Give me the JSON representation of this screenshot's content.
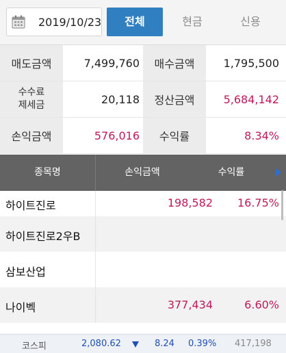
{
  "header": {
    "date": "2019/10/23",
    "tabs": [
      {
        "label": "전체",
        "active": true
      },
      {
        "label": "현금",
        "active": false
      },
      {
        "label": "신용",
        "active": false
      }
    ],
    "calendar_icon": "calendar-icon"
  },
  "summary": {
    "sell_amount_label": "매도금액",
    "sell_amount": "7,499,760",
    "buy_amount_label": "매수금액",
    "buy_amount": "1,795,500",
    "fee_tax_label_line1": "수수료",
    "fee_tax_label_line2": "제세금",
    "fee_tax": "20,118",
    "settlement_label": "정산금액",
    "settlement": "5,684,142",
    "profit_label": "손익금액",
    "profit": "576,016",
    "return_label": "수익률",
    "return_rate": "8.34%"
  },
  "list": {
    "columns": [
      "종목명",
      "손익금액",
      "수익률"
    ],
    "rows": [
      {
        "name": "하이트진로",
        "profit": "198,582",
        "rate": "16.75%"
      },
      {
        "name": "하이트진로2우B",
        "profit": "",
        "rate": ""
      },
      {
        "name": "삼보산업",
        "profit": "",
        "rate": ""
      },
      {
        "name": "나이벡",
        "profit": "377,434",
        "rate": "6.60%"
      }
    ]
  },
  "ticker": {
    "name": "코스피",
    "index": "2,080.62",
    "direction": "down",
    "change": "8.24",
    "change_pct": "0.39%",
    "volume": "417,198"
  },
  "colors": {
    "accent": "#2f7fc1",
    "positive": "#c2185b",
    "down": "#1f4fb5",
    "header_bg": "#636363"
  }
}
